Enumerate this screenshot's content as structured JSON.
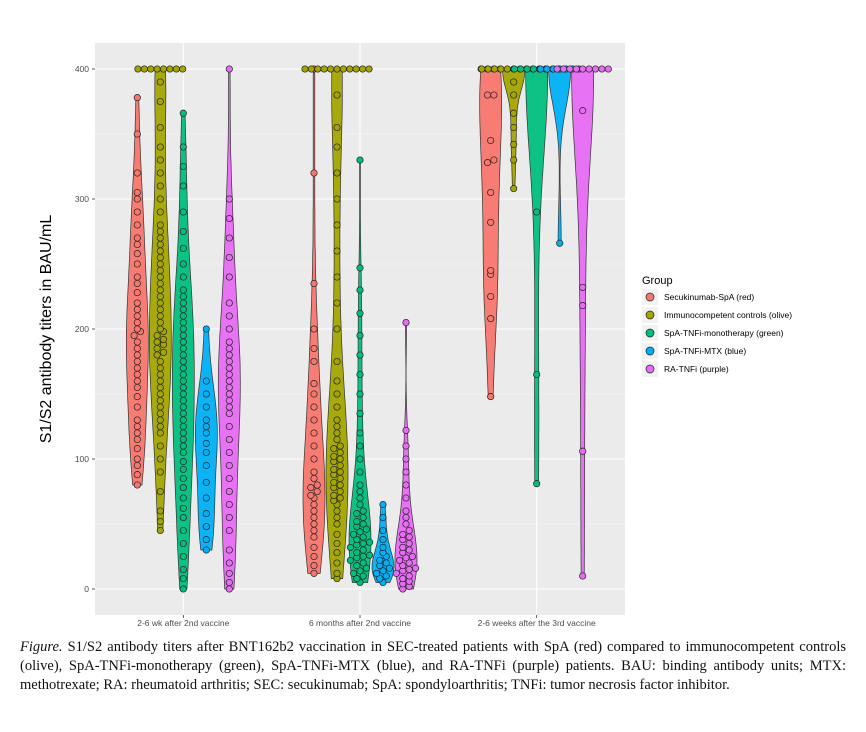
{
  "chart_data": {
    "type": "violin",
    "title": "",
    "xlabel": "",
    "ylabel": "S1/S2 antibody titers in BAU/mL",
    "ylim": [
      -20,
      420
    ],
    "yticks": [
      0,
      100,
      200,
      300,
      400
    ],
    "grid": true,
    "legend_title": "Group",
    "legend_position": "right",
    "categories": [
      "2-6 wk after 2nd vaccine",
      "6 months after 2nd vaccine",
      "2-6 weeks after the 3rd vaccine"
    ],
    "series": [
      {
        "name": "Secukinumab-SpA (red)",
        "color": "#F8766D",
        "values": [
          [
            80,
            88,
            95,
            100,
            108,
            115,
            120,
            125,
            130,
            140,
            148,
            155,
            160,
            165,
            170,
            175,
            180,
            185,
            190,
            195,
            198,
            200,
            205,
            210,
            215,
            220,
            228,
            235,
            240,
            250,
            258,
            265,
            270,
            280,
            290,
            300,
            305,
            320,
            350,
            378
          ],
          [
            12,
            18,
            25,
            32,
            40,
            45,
            50,
            55,
            60,
            65,
            70,
            72,
            75,
            78,
            80,
            85,
            90,
            100,
            110,
            120,
            130,
            140,
            150,
            158,
            175,
            185,
            200,
            235,
            320,
            400
          ],
          [
            148,
            208,
            225,
            242,
            245,
            282,
            305,
            328,
            330,
            345,
            380,
            380,
            400,
            400,
            400,
            400
          ]
        ]
      },
      {
        "name": "Immunocompetent controls (olive)",
        "color": "#A3A500",
        "values": [
          [
            45,
            52,
            60,
            75,
            90,
            100,
            110,
            120,
            125,
            130,
            135,
            140,
            145,
            150,
            155,
            160,
            165,
            170,
            175,
            180,
            182,
            185,
            188,
            190,
            192,
            195,
            198,
            200,
            205,
            210,
            215,
            220,
            225,
            230,
            235,
            240,
            245,
            250,
            255,
            260,
            265,
            270,
            275,
            280,
            290,
            300,
            310,
            320,
            330,
            340,
            355,
            375,
            390,
            400,
            400,
            400,
            400,
            400,
            400,
            400,
            400
          ],
          [
            8,
            12,
            20,
            28,
            35,
            42,
            50,
            55,
            60,
            65,
            68,
            70,
            72,
            75,
            78,
            80,
            82,
            85,
            88,
            90,
            92,
            95,
            98,
            100,
            102,
            105,
            108,
            110,
            115,
            120,
            125,
            130,
            140,
            150,
            160,
            175,
            200,
            220,
            240,
            260,
            280,
            300,
            320,
            340,
            355,
            380,
            400,
            400,
            400,
            400,
            400,
            400,
            400,
            400,
            400,
            400,
            400
          ],
          [
            308,
            330,
            342,
            355,
            366,
            380,
            390,
            400,
            400,
            400,
            400,
            400,
            400,
            400,
            400,
            400,
            400,
            400
          ]
        ]
      },
      {
        "name": "SpA-TNFi-monotherapy (green)",
        "color": "#00BF7D",
        "values": [
          [
            0,
            8,
            15,
            25,
            35,
            45,
            55,
            62,
            70,
            78,
            85,
            92,
            98,
            105,
            110,
            115,
            120,
            125,
            130,
            135,
            140,
            145,
            150,
            155,
            160,
            165,
            170,
            175,
            180,
            185,
            190,
            195,
            200,
            205,
            210,
            215,
            220,
            225,
            230,
            240,
            250,
            262,
            275,
            290,
            310,
            325,
            340,
            366
          ],
          [
            5,
            8,
            10,
            12,
            14,
            16,
            18,
            20,
            22,
            24,
            25,
            26,
            28,
            30,
            32,
            34,
            35,
            36,
            38,
            40,
            42,
            44,
            46,
            48,
            50,
            52,
            55,
            58,
            60,
            65,
            70,
            75,
            80,
            90,
            100,
            110,
            120,
            135,
            150,
            165,
            180,
            195,
            212,
            230,
            247,
            330
          ],
          [
            81,
            165,
            290,
            400,
            400,
            400,
            400,
            400,
            400,
            400,
            400
          ]
        ]
      },
      {
        "name": "SpA-TNFi-MTX (blue)",
        "color": "#00B0F6",
        "values": [
          [
            30,
            38,
            48,
            58,
            70,
            82,
            95,
            105,
            112,
            120,
            125,
            130,
            140,
            150,
            160,
            200
          ],
          [
            5,
            8,
            10,
            12,
            14,
            16,
            18,
            20,
            22,
            25,
            28,
            32,
            38,
            45,
            55,
            65
          ],
          [
            266,
            400,
            400,
            400,
            400,
            400,
            400,
            400
          ]
        ]
      },
      {
        "name": "RA-TNFi (purple)",
        "color": "#E76BF3",
        "values": [
          [
            0,
            5,
            12,
            20,
            30,
            45,
            55,
            65,
            75,
            85,
            95,
            105,
            115,
            125,
            135,
            140,
            145,
            150,
            155,
            160,
            165,
            170,
            175,
            180,
            185,
            190,
            200,
            210,
            220,
            240,
            255,
            270,
            285,
            300,
            400
          ],
          [
            0,
            2,
            4,
            6,
            8,
            10,
            12,
            14,
            15,
            16,
            18,
            20,
            22,
            24,
            25,
            28,
            30,
            32,
            35,
            38,
            40,
            42,
            45,
            50,
            55,
            60,
            70,
            80,
            90,
            100,
            110,
            122,
            205
          ],
          [
            10,
            106,
            218,
            232,
            368,
            400,
            400,
            400,
            400,
            400,
            400,
            400,
            400,
            400
          ]
        ]
      }
    ]
  },
  "caption": {
    "label": "Figure.",
    "text": " S1/S2 antibody titers after BNT162b2 vaccination in SEC-treated patients with SpA (red) compared to immunocompetent controls (olive), SpA-TNFi-monotherapy (green), SpA-TNFi-MTX (blue), and RA-TNFi (purple) patients. BAU: binding antibody units; MTX: methotrexate; RA: rheumatoid arthritis; SEC: secukinumab; SpA: spondyloarthritis; TNFi: tumor necrosis factor inhibitor."
  }
}
